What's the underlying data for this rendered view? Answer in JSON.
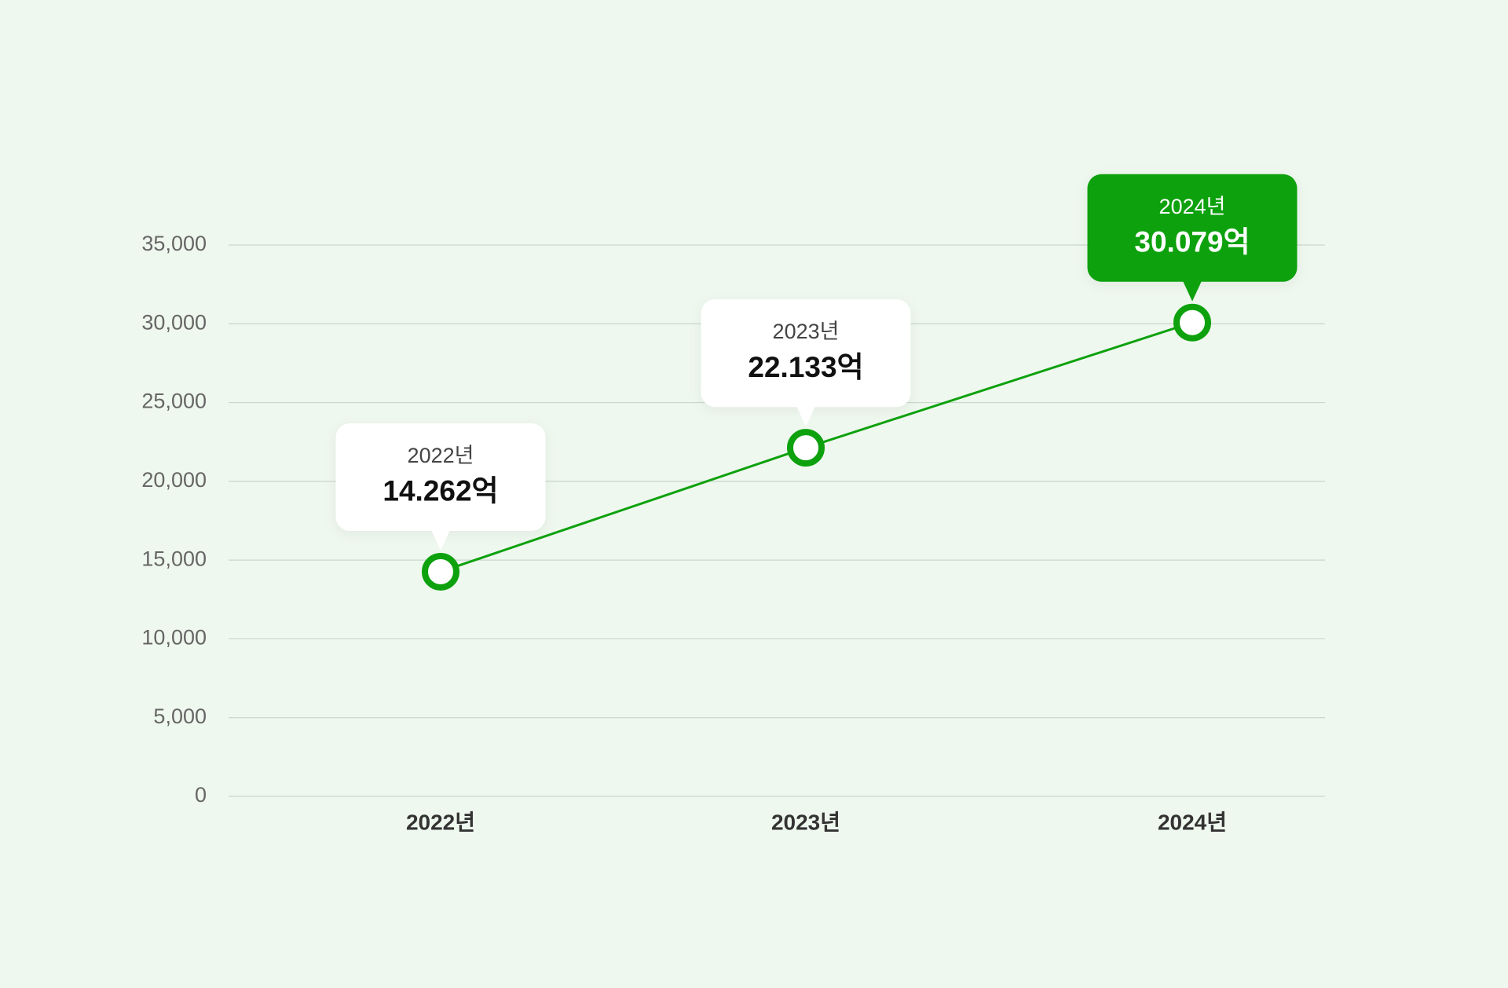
{
  "chart_data": {
    "type": "line",
    "categories": [
      "2022년",
      "2023년",
      "2024년"
    ],
    "values": [
      14262,
      22133,
      30079
    ],
    "value_labels": [
      "14.262억",
      "22.133억",
      "30.079억"
    ],
    "color": "#0ea10e",
    "ylim": [
      0,
      35000
    ],
    "yticks": [
      0,
      {
        "value": 5000,
        "label": "5,000"
      },
      {
        "value": 10000,
        "label": "10,000"
      },
      {
        "value": 15000,
        "label": "15,000"
      },
      {
        "value": 20000,
        "label": "20,000"
      },
      {
        "value": 25000,
        "label": "25,000"
      },
      {
        "value": 30000,
        "label": "30,000"
      },
      {
        "value": 35000,
        "label": "35,000"
      }
    ],
    "grid": true
  }
}
